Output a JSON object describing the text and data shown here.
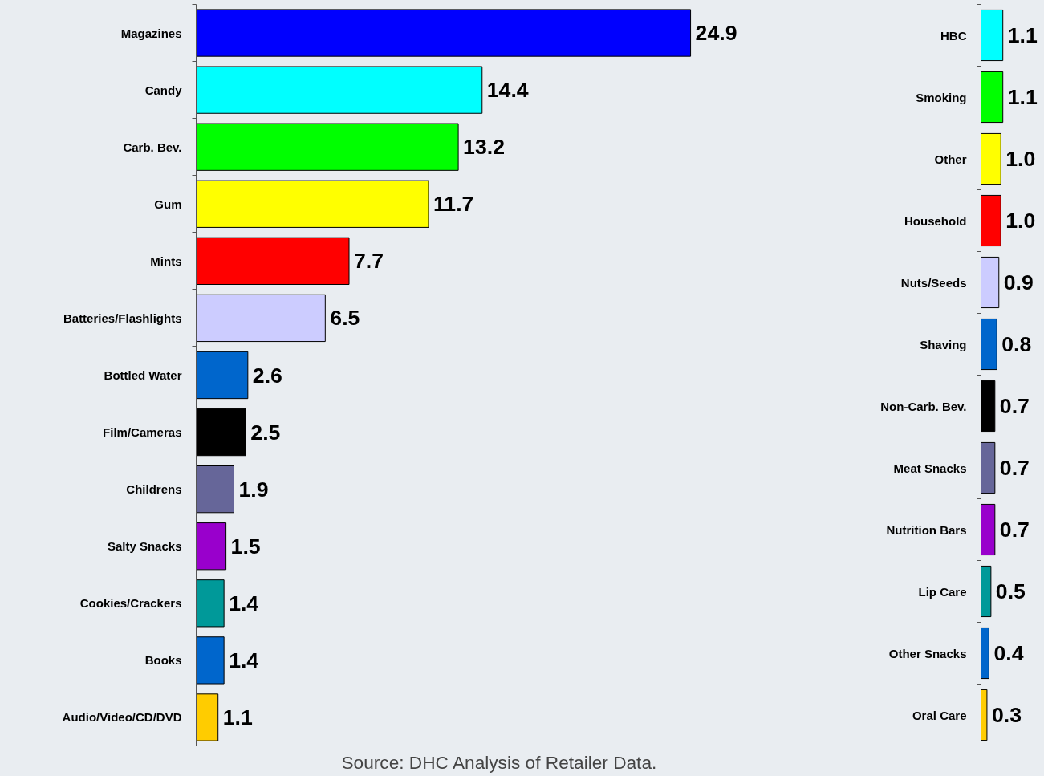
{
  "chart_data": [
    {
      "type": "bar",
      "orientation": "horizontal",
      "categories": [
        "Magazines",
        "Candy",
        "Carb. Bev.",
        "Gum",
        "Mints",
        "Batteries/Flashlights",
        "Bottled Water",
        "Film/Cameras",
        "Childrens",
        "Salty Snacks",
        "Cookies/Crackers",
        "Books",
        "Audio/Video/CD/DVD"
      ],
      "values": [
        24.9,
        14.4,
        13.2,
        11.7,
        7.7,
        6.5,
        2.6,
        2.5,
        1.9,
        1.5,
        1.4,
        1.4,
        1.1
      ],
      "value_labels": [
        "24.9",
        "14.4",
        "13.2",
        "11.7",
        "7.7",
        "6.5",
        "2.6",
        "2.5",
        "1.9",
        "1.5",
        "1.4",
        "1.4",
        "1.1"
      ],
      "colors": [
        "#0000ff",
        "#00ffff",
        "#00ff00",
        "#ffff00",
        "#ff0000",
        "#ccccff",
        "#0066cc",
        "#000000",
        "#666699",
        "#9900cc",
        "#009999",
        "#0066cc",
        "#ffcc00"
      ],
      "annotations": [
        "Source: DHC Analysis of Retailer Data."
      ],
      "grid": false
    },
    {
      "type": "bar",
      "orientation": "horizontal",
      "categories": [
        "HBC",
        "Smoking",
        "Other",
        "Household",
        "Nuts/Seeds",
        "Shaving",
        "Non-Carb. Bev.",
        "Meat Snacks",
        "Nutrition Bars",
        "Lip Care",
        "Other Snacks",
        "Oral Care"
      ],
      "values": [
        1.1,
        1.1,
        1.0,
        1.0,
        0.9,
        0.8,
        0.7,
        0.7,
        0.7,
        0.5,
        0.4,
        0.3
      ],
      "value_labels": [
        "1.1",
        "1.1",
        "1.0",
        "1.0",
        "0.9",
        "0.8",
        "0.7",
        "0.7",
        "0.7",
        "0.5",
        "0.4",
        "0.3"
      ],
      "colors": [
        "#00ffff",
        "#00ff00",
        "#ffff00",
        "#ff0000",
        "#ccccff",
        "#0066cc",
        "#000000",
        "#666699",
        "#9900cc",
        "#009999",
        "#0066cc",
        "#ffcc00"
      ],
      "grid": false
    }
  ]
}
